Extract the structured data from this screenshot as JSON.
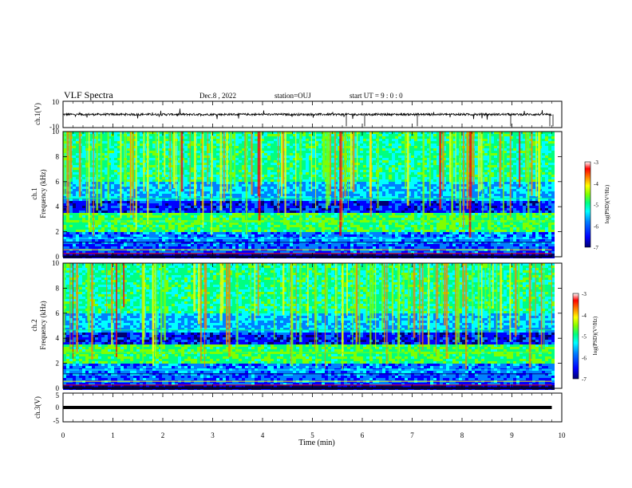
{
  "header": {
    "title": "VLF Spectra",
    "date": "Dec.8  , 2022",
    "station": "station=OUJ",
    "start": "start  UT =   9 : 0  : 0"
  },
  "colors": {
    "waveform": "#000000",
    "colormap": [
      "#000070",
      "#0000ff",
      "#0080ff",
      "#00ffff",
      "#00ff80",
      "#80ff00",
      "#ffff00",
      "#ff8000",
      "#ff0000",
      "#ffffff"
    ]
  },
  "chart_data": [
    {
      "type": "line",
      "ylabel": "ch.1(V)",
      "ylim": [
        -10,
        10
      ],
      "y_ticks": [
        "10",
        "-10"
      ],
      "description_values": {
        "baseline": 0
      }
    },
    {
      "type": "heatmap",
      "ylabel_top": "ch.1",
      "ylabel": "Frequency (kHz)",
      "ylim": [
        0,
        10
      ],
      "y_ticks": [
        "0",
        "2",
        "4",
        "6",
        "8",
        "10"
      ],
      "colorbar": {
        "label": "log(PSD)(V²/Hz)",
        "ticks": [
          "-3",
          "-4",
          "-5",
          "-6",
          "-7"
        ],
        "range": [
          -7,
          -3
        ]
      }
    },
    {
      "type": "heatmap",
      "ylabel_top": "ch.2",
      "ylabel": "Frequency (kHz)",
      "ylim": [
        0,
        10
      ],
      "y_ticks": [
        "0",
        "2",
        "4",
        "6",
        "8",
        "10"
      ],
      "colorbar": {
        "label": "log(PSD)(V²/Hz)",
        "ticks": [
          "-3",
          "-4",
          "-5",
          "-6",
          "-7"
        ],
        "range": [
          -7,
          -3
        ]
      }
    },
    {
      "type": "line",
      "ylabel": "ch.3(V)",
      "ylim": [
        -5,
        5
      ],
      "y_ticks": [
        "5",
        "0",
        "-5"
      ],
      "values": {
        "constant": 0
      }
    }
  ],
  "xaxis": {
    "label": "Time (min)",
    "ticks": [
      "0",
      "1",
      "2",
      "3",
      "4",
      "5",
      "6",
      "7",
      "8",
      "9",
      "10"
    ],
    "xlim": [
      0,
      10
    ],
    "data_end": 9.8
  }
}
